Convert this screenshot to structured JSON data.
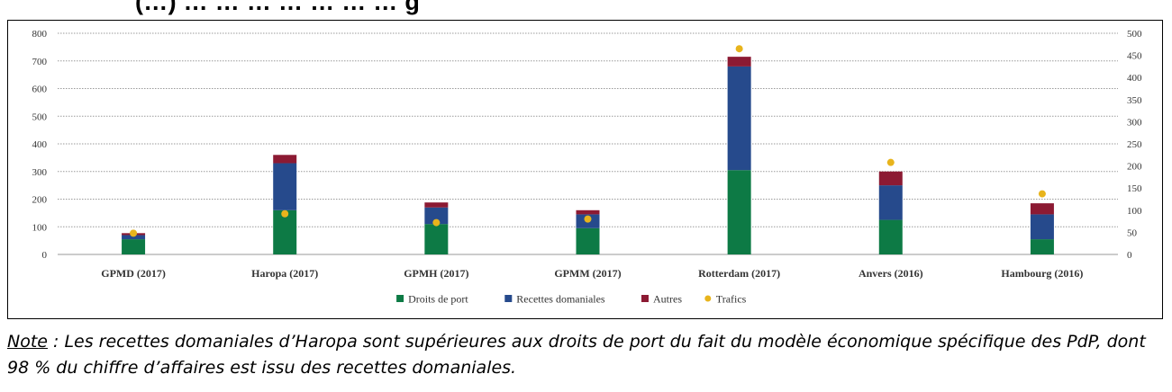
{
  "title": "(…) … … … … … … … g",
  "note": {
    "label": "Note",
    "separator": " : ",
    "text": "Les recettes domaniales d’Haropa sont supérieures aux droits de port du fait du modèle économique spécifique des PdP, dont 98 % du chiffre d’affaires est issu des recettes domaniales."
  },
  "chart_data": {
    "type": "bar",
    "stacked": true,
    "categories": [
      "GPMD (2017)",
      "Haropa (2017)",
      "GPMH (2017)",
      "GPMM (2017)",
      "Rotterdam (2017)",
      "Anvers (2016)",
      "Hambourg (2016)"
    ],
    "series": [
      {
        "name": "Droits de port",
        "color": "#0d7a45",
        "axis": "left",
        "values": [
          55,
          160,
          110,
          95,
          305,
          125,
          55
        ]
      },
      {
        "name": "Recettes domaniales",
        "color": "#264a8c",
        "axis": "left",
        "values": [
          15,
          170,
          60,
          50,
          375,
          125,
          90
        ]
      },
      {
        "name": "Autres",
        "color": "#8c1a33",
        "axis": "left",
        "values": [
          7,
          30,
          18,
          15,
          35,
          50,
          40
        ]
      },
      {
        "name": "Trafics",
        "color": "#e8b41c",
        "axis": "right",
        "type": "scatter",
        "values": [
          48,
          92,
          72,
          80,
          465,
          208,
          137
        ]
      }
    ],
    "y_left": {
      "min": 0,
      "max": 800,
      "ticks": [
        0,
        100,
        200,
        300,
        400,
        500,
        600,
        700,
        800
      ]
    },
    "y_right": {
      "min": 0,
      "max": 500,
      "ticks": [
        0,
        50,
        100,
        150,
        200,
        250,
        300,
        350,
        400,
        450,
        500
      ]
    },
    "grid": true,
    "legend": "bottom"
  }
}
